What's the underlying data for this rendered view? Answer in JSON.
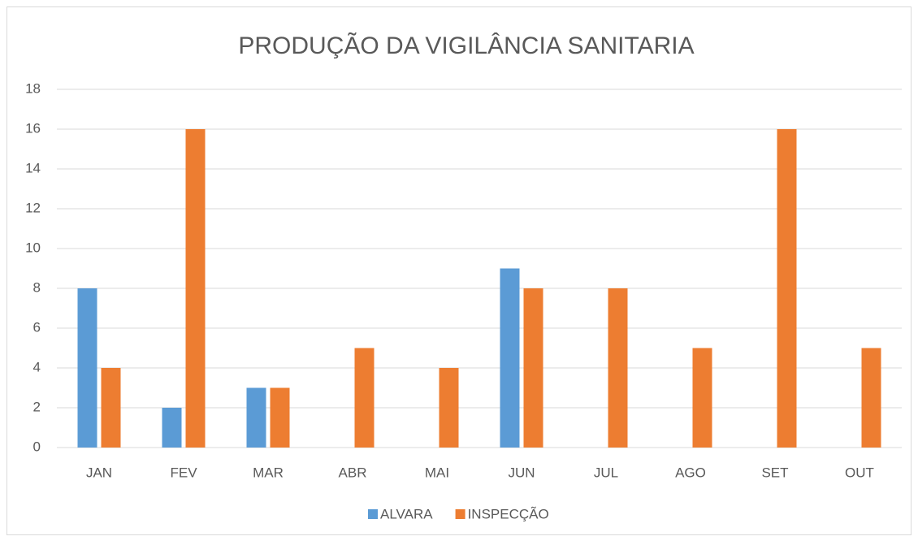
{
  "chart_data": {
    "type": "bar",
    "title": "PRODUÇÃO DA VIGILÂNCIA SANITARIA",
    "categories": [
      "JAN",
      "FEV",
      "MAR",
      "ABR",
      "MAI",
      "JUN",
      "JUL",
      "AGO",
      "SET",
      "OUT"
    ],
    "series": [
      {
        "name": "ALVARA",
        "color": "#5b9bd5",
        "values": [
          8,
          2,
          3,
          0,
          0,
          9,
          0,
          0,
          0,
          0
        ]
      },
      {
        "name": "INSPECÇÃO",
        "color": "#ed7d31",
        "values": [
          4,
          16,
          3,
          5,
          4,
          8,
          8,
          5,
          16,
          5
        ]
      }
    ],
    "ylim": [
      0,
      18
    ],
    "yticks": [
      0,
      2,
      4,
      6,
      8,
      10,
      12,
      14,
      16,
      18
    ],
    "grid": true,
    "legend": "bottom"
  }
}
